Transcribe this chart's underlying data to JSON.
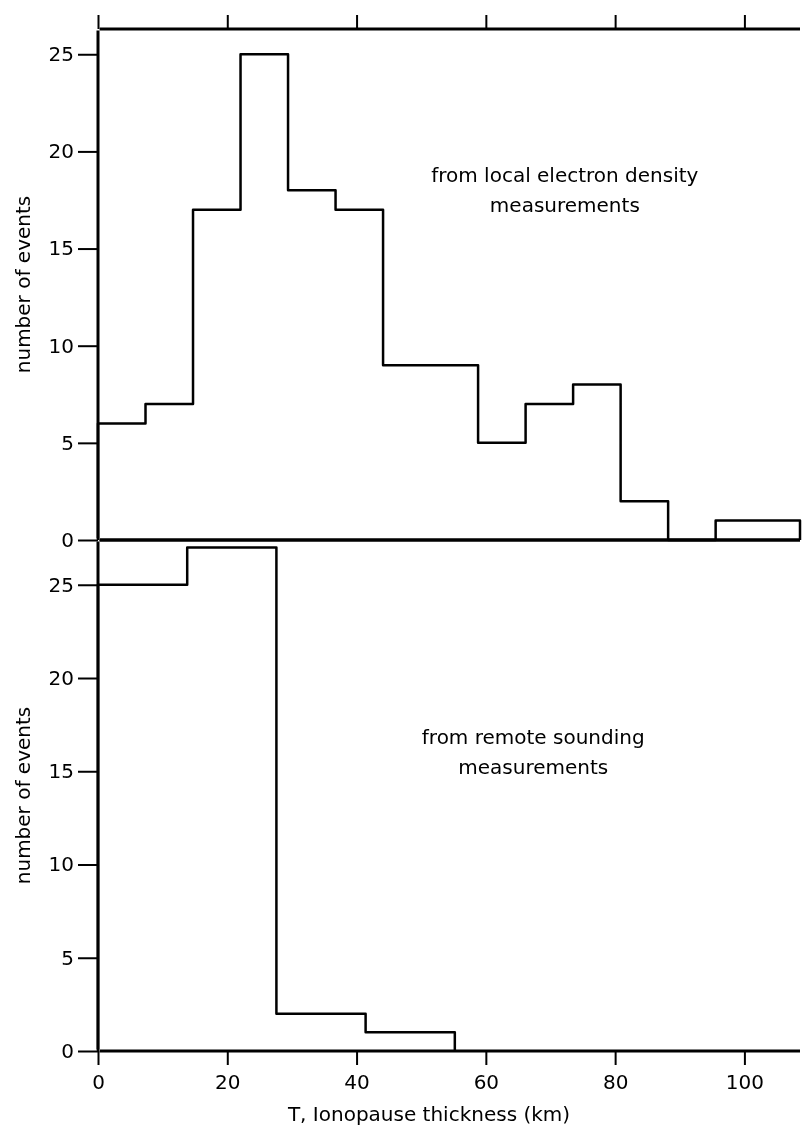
{
  "chart_data": [
    {
      "type": "histogram",
      "ylabel": "number of events",
      "color": "#000000",
      "tick_labels": "y",
      "bins": [
        0,
        7.35,
        14.7,
        22.05,
        29.4,
        36.75,
        44.1,
        51.45,
        58.8,
        66.15,
        73.5,
        80.85,
        88.2,
        95.55,
        102.9,
        108.6
      ],
      "values": [
        6,
        7,
        17,
        25,
        18,
        17,
        9,
        9,
        5,
        7,
        8,
        2,
        0,
        1,
        1
      ],
      "xlim": [
        0,
        108.6
      ],
      "ylim": [
        0,
        26.3
      ],
      "xticks": [
        0,
        20,
        40,
        60,
        80,
        100
      ],
      "yticks": [
        0,
        5,
        10,
        15,
        20,
        25
      ],
      "annotations": [
        "from local electron density measurements"
      ]
    },
    {
      "type": "histogram",
      "ylabel": "number of events",
      "xlabel": "T, Ionopause thickness (km)",
      "color": "#000000",
      "bins": [
        0,
        13.8,
        27.6,
        41.4,
        55.2
      ],
      "values": [
        25,
        27,
        2,
        1
      ],
      "xlim": [
        0,
        108.6
      ],
      "ylim": [
        0,
        27.4
      ],
      "xticks": [
        0,
        20,
        40,
        60,
        80,
        100
      ],
      "yticks": [
        0,
        5,
        10,
        15,
        20,
        25
      ],
      "annotations": [
        "from remote sounding measurements"
      ]
    }
  ]
}
